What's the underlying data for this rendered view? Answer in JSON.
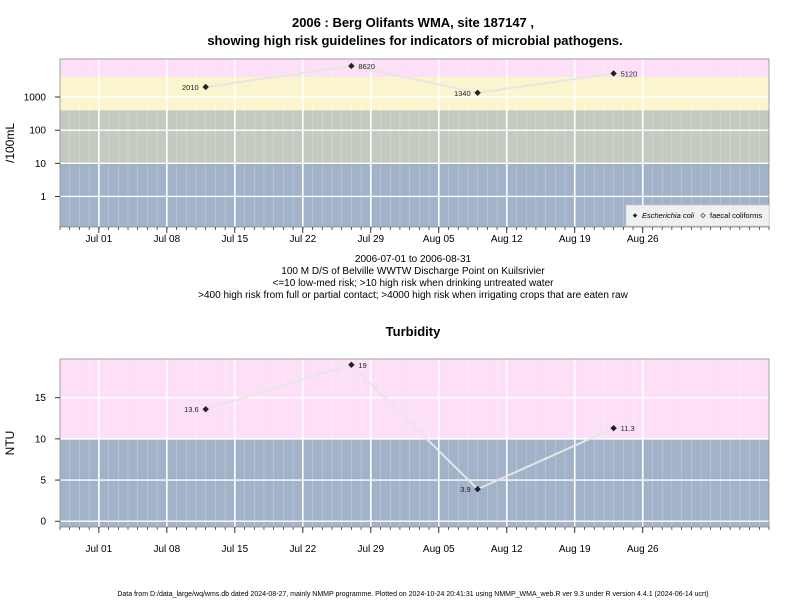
{
  "colors": {
    "band_pink": "#fde0f8",
    "band_yellow": "#fbf5cd",
    "band_gray": "#c3cbc0",
    "band_blue": "#a1b2c9",
    "gridline": "#ffffff",
    "series_line": "#e6e6e6",
    "marker": "#222222"
  },
  "chart_data": [
    {
      "type": "line",
      "title": "2006 : Berg Olifants WMA, site 187147 ,",
      "subtitle": "showing high risk guidelines for indicators of microbial pathogens.",
      "ylabel": "/100mL",
      "y_scale": "log",
      "ylim": [
        0.12,
        14000
      ],
      "xlim": [
        "2006-06-27",
        "2006-09-08"
      ],
      "x_ticks": [
        "Jul 01",
        "Jul 08",
        "Jul 15",
        "Jul 22",
        "Jul 29",
        "Aug 05",
        "Aug 12",
        "Aug 19",
        "Aug 26"
      ],
      "x_tick_dates": [
        "2006-07-01",
        "2006-07-08",
        "2006-07-15",
        "2006-07-22",
        "2006-07-29",
        "2006-08-05",
        "2006-08-12",
        "2006-08-19",
        "2006-08-26"
      ],
      "y_ticks": [
        "1",
        "10",
        "100",
        "1000"
      ],
      "y_tick_values": [
        1,
        10,
        100,
        1000
      ],
      "bands": [
        {
          "from": 0.12,
          "to": 10,
          "color": "#a1b2c9"
        },
        {
          "from": 10,
          "to": 400,
          "color": "#c3cbc0"
        },
        {
          "from": 400,
          "to": 4000,
          "color": "#fbf5cd"
        },
        {
          "from": 4000,
          "to": 14000,
          "color": "#fde0f8"
        }
      ],
      "series": [
        {
          "name": "Escherichia coli",
          "x": [
            "2006-07-12",
            "2006-07-27",
            "2006-08-09",
            "2006-08-23"
          ],
          "y": [
            2010,
            8620,
            1340,
            5120
          ],
          "labels": [
            "2010",
            "8620",
            "1340",
            "5120"
          ],
          "label_side": [
            "left",
            "right",
            "left",
            "right"
          ]
        }
      ],
      "legend": {
        "position": "bottom-right",
        "entries": [
          "Escherichia coli",
          "faecal coliforms"
        ]
      },
      "caption": [
        "2006-07-01 to 2006-08-31",
        "100 M D/S of Belville WWTW Discharge Point on Kuilsrivier",
        "<=10 low-med risk; >10 high risk when drinking untreated water",
        ">400 high risk from full or partial contact; >4000 high risk when irrigating crops that are eaten raw"
      ]
    },
    {
      "type": "line",
      "title": "Turbidity",
      "ylabel": "NTU",
      "y_scale": "linear",
      "ylim": [
        -0.7,
        19.7
      ],
      "xlim": [
        "2006-06-27",
        "2006-09-08"
      ],
      "x_ticks": [
        "Jul 01",
        "Jul 08",
        "Jul 15",
        "Jul 22",
        "Jul 29",
        "Aug 05",
        "Aug 12",
        "Aug 19",
        "Aug 26"
      ],
      "x_tick_dates": [
        "2006-07-01",
        "2006-07-08",
        "2006-07-15",
        "2006-07-22",
        "2006-07-29",
        "2006-08-05",
        "2006-08-12",
        "2006-08-19",
        "2006-08-26"
      ],
      "y_ticks": [
        "0",
        "5",
        "10",
        "15"
      ],
      "y_tick_values": [
        0,
        5,
        10,
        15
      ],
      "bands": [
        {
          "from": -0.7,
          "to": 10,
          "color": "#a1b2c9"
        },
        {
          "from": 10,
          "to": 19.7,
          "color": "#fde0f8"
        }
      ],
      "series": [
        {
          "x": [
            "2006-07-12",
            "2006-07-27",
            "2006-08-09",
            "2006-08-23"
          ],
          "y": [
            13.6,
            19,
            3.9,
            11.3
          ],
          "labels": [
            "13.6",
            "19",
            "3.9",
            "11.3"
          ],
          "label_side": [
            "left",
            "right",
            "left",
            "right"
          ]
        }
      ]
    }
  ],
  "footer": "Data from D:/data_large/wq/wms.db dated 2024-08-27, mainly NMMP programme. Plotted on 2024-10-24 20:41:31 using NMMP_WMA_web.R ver 9.3 under R version 4.4.1 (2024-06-14 ucrt)"
}
